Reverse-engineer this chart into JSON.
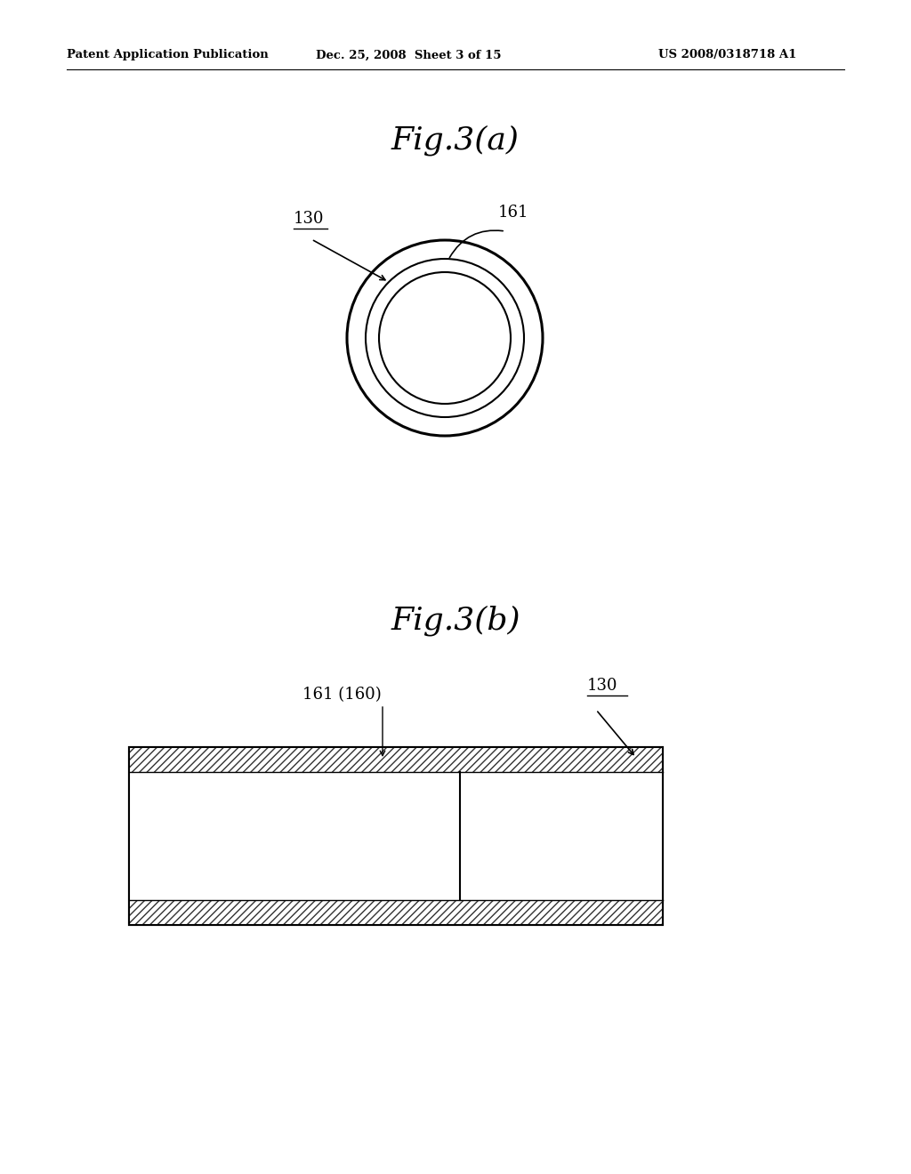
{
  "bg_color": "#ffffff",
  "header_left": "Patent Application Publication",
  "header_mid": "Dec. 25, 2008  Sheet 3 of 15",
  "header_right": "US 2008/0318718 A1",
  "fig_a_title": "Fig.3(a)",
  "fig_b_title": "Fig.3(b)",
  "label_130_a": "130",
  "label_161_a": "161",
  "label_161_b": "161 (160)",
  "label_130_b": "130",
  "line_color": "#000000"
}
